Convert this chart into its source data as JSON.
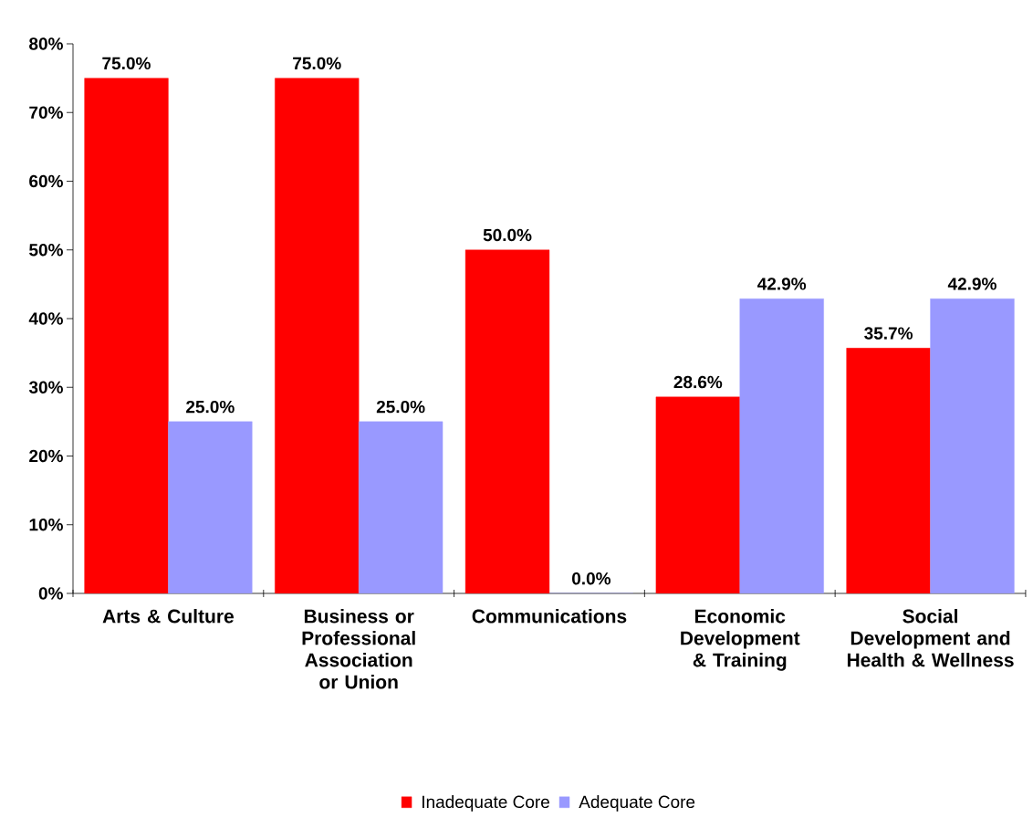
{
  "chart_data": {
    "type": "bar",
    "categories": [
      "Arts & Culture",
      "Business or Professional Association or Union",
      "Communications",
      "Economic Development & Training",
      "Social Development and Health & Wellness"
    ],
    "series": [
      {
        "name": "Inadequate Core",
        "color": "#ff0000",
        "values": [
          75.0,
          75.0,
          50.0,
          28.6,
          35.7
        ],
        "value_labels": [
          "75.0%",
          "75.0%",
          "50.0%",
          "28.6%",
          "35.7%"
        ]
      },
      {
        "name": "Adequate Core",
        "color": "#9999ff",
        "values": [
          25.0,
          25.0,
          0.0,
          42.9,
          42.9
        ],
        "value_labels": [
          "25.0%",
          "25.0%",
          "0.0%",
          "42.9%",
          "42.9%"
        ]
      }
    ],
    "ylim": [
      0,
      80
    ],
    "yticks": [
      {
        "value": 0,
        "label": "0%"
      },
      {
        "value": 10,
        "label": "10%"
      },
      {
        "value": 20,
        "label": "20%"
      },
      {
        "value": 30,
        "label": "30%"
      },
      {
        "value": 40,
        "label": "40%"
      },
      {
        "value": 50,
        "label": "50%"
      },
      {
        "value": 60,
        "label": "60%"
      },
      {
        "value": 70,
        "label": "70%"
      },
      {
        "value": 80,
        "label": "80%"
      }
    ],
    "grid": false,
    "legend": "bottom"
  }
}
